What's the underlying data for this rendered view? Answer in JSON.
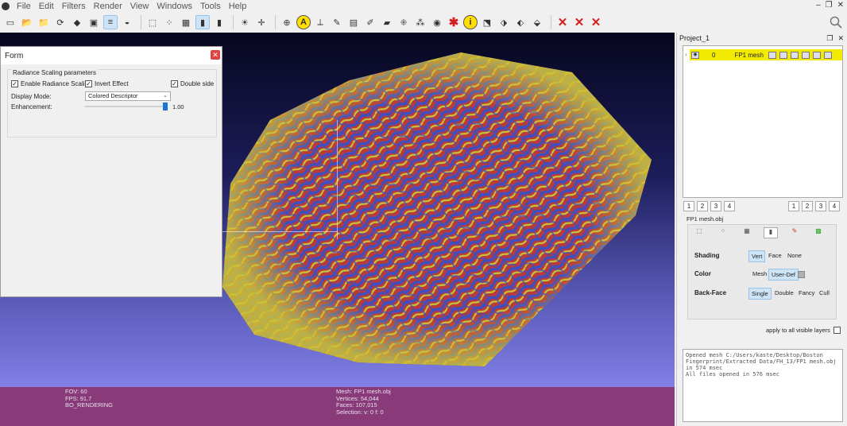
{
  "menu": [
    "File",
    "Edit",
    "Filters",
    "Render",
    "View",
    "Windows",
    "Tools",
    "Help"
  ],
  "window_controls": [
    "–",
    "❐",
    "✕"
  ],
  "form": {
    "title": "Form",
    "group_title": "Radiance Scaling parameters",
    "enable_label": "Enable Radiance Scaling",
    "enable_checked": true,
    "invert_label": "Invert Effect",
    "invert_checked": true,
    "double_side_label": "Double side",
    "double_side_checked": true,
    "display_mode_label": "Display Mode:",
    "display_mode_value": "Colored Descriptor",
    "enhancement_label": "Enhancement:",
    "enhancement_value": "1.00",
    "enhancement_fraction": 1.0
  },
  "status": {
    "fov": "FOV: 60",
    "fps": "FPS:   91.7",
    "render": "BO_RENDERING",
    "mesh": "Mesh: FP1 mesh.obj",
    "vertices": "Vertices: 54,044",
    "faces": "Faces: 107,015",
    "selection": "Selection: v: 0 f: 0"
  },
  "project": {
    "title": "Project_1",
    "layer_index": "0",
    "layer_name": "FP1 mesh",
    "left_nums": [
      "1",
      "2",
      "3",
      "4"
    ],
    "right_nums": [
      "1",
      "2",
      "3",
      "4"
    ],
    "mesh_file": "FP1 mesh.obj"
  },
  "shading": {
    "shading_label": "Shading",
    "shading_options": [
      "Vert",
      "Face",
      "None"
    ],
    "color_label": "Color",
    "color_options": [
      "Mesh",
      "User-Def"
    ],
    "backface_label": "Back-Face",
    "backface_options": [
      "Single",
      "Double",
      "Fancy",
      "Cull"
    ],
    "apply_all": "apply to all visible layers"
  },
  "log": "Opened mesh C:/Users/kaste/Desktop/Boston Fingerprint/Extracted Data/FH_13/FP1 mesh.obj in 574 msec\nAll files opened in 576 msec",
  "colors": {
    "mesh_red": "#b83a3a",
    "mesh_blue": "#3f4fbf",
    "mesh_yellow": "#c9c23a",
    "layer_highlight": "#f2ea00"
  }
}
